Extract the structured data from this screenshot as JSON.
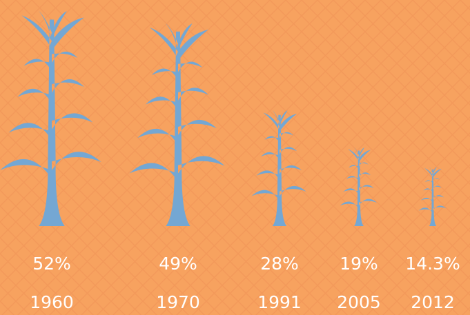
{
  "chart_data": {
    "type": "pictograph",
    "categories": [
      "1960",
      "1970",
      "1991",
      "2005",
      "2012"
    ],
    "values": [
      52,
      49,
      28,
      19,
      14.3
    ],
    "value_labels": [
      "52%",
      "49%",
      "28%",
      "19%",
      "14.3%"
    ],
    "color": "#74a7d3"
  }
}
